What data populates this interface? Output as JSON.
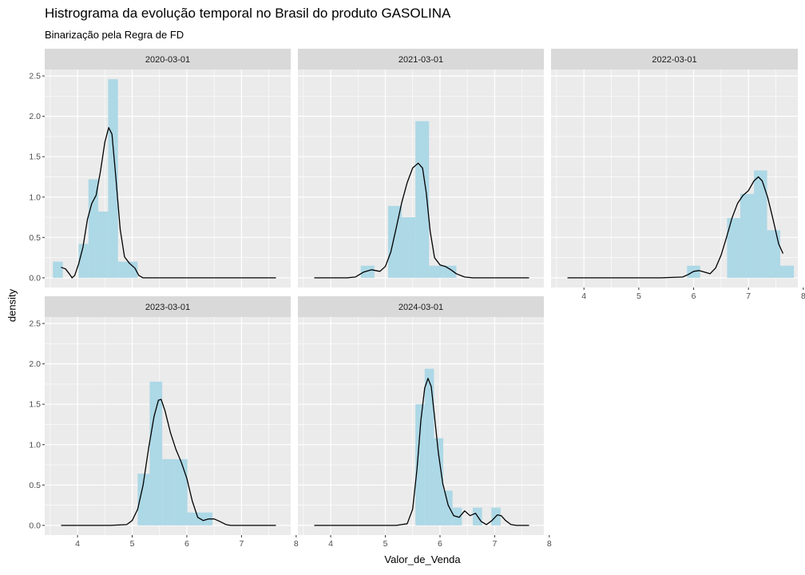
{
  "title": "Histrograma da evolução temporal no Brasil do produto GASOLINA",
  "subtitle": "Binarização pela Regra de FD",
  "chart_data": {
    "type": "histogram",
    "xlabel": "Valor_de_Venda",
    "ylabel": "density",
    "xlim": [
      3.4,
      7.9
    ],
    "ylim": [
      -0.12,
      2.58
    ],
    "x_ticks": [
      4,
      5,
      6,
      7,
      8
    ],
    "y_ticks": [
      0.0,
      0.5,
      1.0,
      1.5,
      2.0,
      2.5
    ],
    "y_tick_labels": [
      "0.0",
      "0.5",
      "1.0",
      "1.5",
      "2.0",
      "2.5"
    ],
    "grid": true,
    "bar_color": "#add8e6",
    "density_line_color": "#000000",
    "panel_background": "#ebebeb",
    "strip_background": "#d9d9d9",
    "panels": [
      {
        "label": "2020-03-01",
        "bars": [
          {
            "x0": 3.55,
            "x1": 3.73,
            "d": 0.2
          },
          {
            "x0": 4.02,
            "x1": 4.2,
            "d": 0.42
          },
          {
            "x0": 4.2,
            "x1": 4.38,
            "d": 1.22
          },
          {
            "x0": 4.38,
            "x1": 4.56,
            "d": 0.82
          },
          {
            "x0": 4.56,
            "x1": 4.74,
            "d": 2.46
          },
          {
            "x0": 4.74,
            "x1": 4.92,
            "d": 0.2
          },
          {
            "x0": 4.92,
            "x1": 5.1,
            "d": 0.2
          }
        ],
        "density": [
          [
            3.7,
            0.13
          ],
          [
            3.78,
            0.11
          ],
          [
            3.86,
            0.04
          ],
          [
            3.9,
            0.0
          ],
          [
            3.95,
            0.03
          ],
          [
            4.02,
            0.17
          ],
          [
            4.1,
            0.38
          ],
          [
            4.18,
            0.72
          ],
          [
            4.26,
            0.92
          ],
          [
            4.34,
            1.02
          ],
          [
            4.42,
            1.32
          ],
          [
            4.5,
            1.68
          ],
          [
            4.57,
            1.86
          ],
          [
            4.63,
            1.78
          ],
          [
            4.7,
            1.25
          ],
          [
            4.78,
            0.6
          ],
          [
            4.86,
            0.26
          ],
          [
            4.95,
            0.18
          ],
          [
            5.05,
            0.12
          ],
          [
            5.12,
            0.03
          ],
          [
            5.2,
            0.0
          ],
          [
            5.5,
            0.0
          ],
          [
            6.0,
            0.0
          ],
          [
            6.5,
            0.0
          ],
          [
            7.0,
            0.0
          ],
          [
            7.63,
            0.0
          ]
        ]
      },
      {
        "label": "2021-03-01",
        "bars": [
          {
            "x0": 4.55,
            "x1": 4.8,
            "d": 0.15
          },
          {
            "x0": 5.05,
            "x1": 5.3,
            "d": 0.89
          },
          {
            "x0": 5.3,
            "x1": 5.55,
            "d": 0.75
          },
          {
            "x0": 5.55,
            "x1": 5.8,
            "d": 1.94
          },
          {
            "x0": 5.8,
            "x1": 6.05,
            "d": 0.15
          },
          {
            "x0": 6.05,
            "x1": 6.3,
            "d": 0.15
          }
        ],
        "density": [
          [
            3.7,
            0.0
          ],
          [
            4.0,
            0.0
          ],
          [
            4.3,
            0.0
          ],
          [
            4.45,
            0.01
          ],
          [
            4.6,
            0.07
          ],
          [
            4.75,
            0.1
          ],
          [
            4.9,
            0.08
          ],
          [
            5.0,
            0.14
          ],
          [
            5.1,
            0.32
          ],
          [
            5.2,
            0.62
          ],
          [
            5.3,
            0.93
          ],
          [
            5.4,
            1.18
          ],
          [
            5.5,
            1.36
          ],
          [
            5.6,
            1.42
          ],
          [
            5.68,
            1.36
          ],
          [
            5.75,
            1.05
          ],
          [
            5.82,
            0.58
          ],
          [
            5.9,
            0.25
          ],
          [
            6.0,
            0.16
          ],
          [
            6.1,
            0.14
          ],
          [
            6.2,
            0.1
          ],
          [
            6.3,
            0.05
          ],
          [
            6.45,
            0.01
          ],
          [
            6.6,
            0.0
          ],
          [
            7.0,
            0.0
          ],
          [
            7.63,
            0.0
          ]
        ]
      },
      {
        "label": "2022-03-01",
        "bars": [
          {
            "x0": 5.88,
            "x1": 6.12,
            "d": 0.15
          },
          {
            "x0": 6.61,
            "x1": 6.85,
            "d": 0.74
          },
          {
            "x0": 6.85,
            "x1": 7.1,
            "d": 1.04
          },
          {
            "x0": 7.1,
            "x1": 7.34,
            "d": 1.33
          },
          {
            "x0": 7.34,
            "x1": 7.58,
            "d": 0.59
          },
          {
            "x0": 7.58,
            "x1": 7.83,
            "d": 0.15
          }
        ],
        "density": [
          [
            3.7,
            0.0
          ],
          [
            4.2,
            0.0
          ],
          [
            4.8,
            0.0
          ],
          [
            5.4,
            0.0
          ],
          [
            5.8,
            0.01
          ],
          [
            5.9,
            0.04
          ],
          [
            6.0,
            0.08
          ],
          [
            6.1,
            0.09
          ],
          [
            6.2,
            0.07
          ],
          [
            6.3,
            0.05
          ],
          [
            6.4,
            0.12
          ],
          [
            6.5,
            0.28
          ],
          [
            6.6,
            0.5
          ],
          [
            6.7,
            0.74
          ],
          [
            6.8,
            0.92
          ],
          [
            6.9,
            1.02
          ],
          [
            7.0,
            1.08
          ],
          [
            7.1,
            1.2
          ],
          [
            7.18,
            1.25
          ],
          [
            7.25,
            1.2
          ],
          [
            7.35,
            1.0
          ],
          [
            7.45,
            0.72
          ],
          [
            7.55,
            0.42
          ],
          [
            7.63,
            0.3
          ]
        ]
      },
      {
        "label": "2023-03-01",
        "bars": [
          {
            "x0": 5.1,
            "x1": 5.32,
            "d": 0.64
          },
          {
            "x0": 5.32,
            "x1": 5.55,
            "d": 1.78
          },
          {
            "x0": 5.55,
            "x1": 5.78,
            "d": 0.82
          },
          {
            "x0": 5.78,
            "x1": 6.01,
            "d": 0.82
          },
          {
            "x0": 6.01,
            "x1": 6.24,
            "d": 0.16
          },
          {
            "x0": 6.24,
            "x1": 6.47,
            "d": 0.16
          }
        ],
        "density": [
          [
            3.7,
            0.0
          ],
          [
            4.2,
            0.0
          ],
          [
            4.6,
            0.0
          ],
          [
            4.9,
            0.01
          ],
          [
            5.0,
            0.06
          ],
          [
            5.1,
            0.2
          ],
          [
            5.2,
            0.5
          ],
          [
            5.3,
            0.95
          ],
          [
            5.4,
            1.35
          ],
          [
            5.48,
            1.55
          ],
          [
            5.53,
            1.56
          ],
          [
            5.6,
            1.42
          ],
          [
            5.7,
            1.15
          ],
          [
            5.8,
            0.94
          ],
          [
            5.9,
            0.78
          ],
          [
            6.0,
            0.58
          ],
          [
            6.1,
            0.3
          ],
          [
            6.2,
            0.1
          ],
          [
            6.3,
            0.06
          ],
          [
            6.4,
            0.08
          ],
          [
            6.5,
            0.08
          ],
          [
            6.6,
            0.05
          ],
          [
            6.72,
            0.01
          ],
          [
            6.8,
            0.0
          ],
          [
            7.2,
            0.0
          ],
          [
            7.63,
            0.0
          ]
        ]
      },
      {
        "label": "2024-03-01",
        "bars": [
          {
            "x0": 5.55,
            "x1": 5.72,
            "d": 1.5
          },
          {
            "x0": 5.72,
            "x1": 5.89,
            "d": 1.94
          },
          {
            "x0": 5.89,
            "x1": 6.06,
            "d": 1.08
          },
          {
            "x0": 6.06,
            "x1": 6.23,
            "d": 0.43
          },
          {
            "x0": 6.23,
            "x1": 6.4,
            "d": 0.22
          },
          {
            "x0": 6.6,
            "x1": 6.77,
            "d": 0.22
          },
          {
            "x0": 6.94,
            "x1": 7.11,
            "d": 0.22
          }
        ],
        "density": [
          [
            3.7,
            0.0
          ],
          [
            4.5,
            0.0
          ],
          [
            5.2,
            0.0
          ],
          [
            5.4,
            0.02
          ],
          [
            5.5,
            0.2
          ],
          [
            5.58,
            0.7
          ],
          [
            5.65,
            1.3
          ],
          [
            5.72,
            1.7
          ],
          [
            5.78,
            1.82
          ],
          [
            5.84,
            1.72
          ],
          [
            5.9,
            1.35
          ],
          [
            5.97,
            0.9
          ],
          [
            6.05,
            0.52
          ],
          [
            6.15,
            0.25
          ],
          [
            6.25,
            0.12
          ],
          [
            6.35,
            0.1
          ],
          [
            6.45,
            0.18
          ],
          [
            6.55,
            0.12
          ],
          [
            6.65,
            0.15
          ],
          [
            6.75,
            0.05
          ],
          [
            6.85,
            0.01
          ],
          [
            6.95,
            0.06
          ],
          [
            7.05,
            0.13
          ],
          [
            7.12,
            0.12
          ],
          [
            7.2,
            0.06
          ],
          [
            7.3,
            0.01
          ],
          [
            7.4,
            0.0
          ],
          [
            7.63,
            0.0
          ]
        ]
      }
    ]
  }
}
